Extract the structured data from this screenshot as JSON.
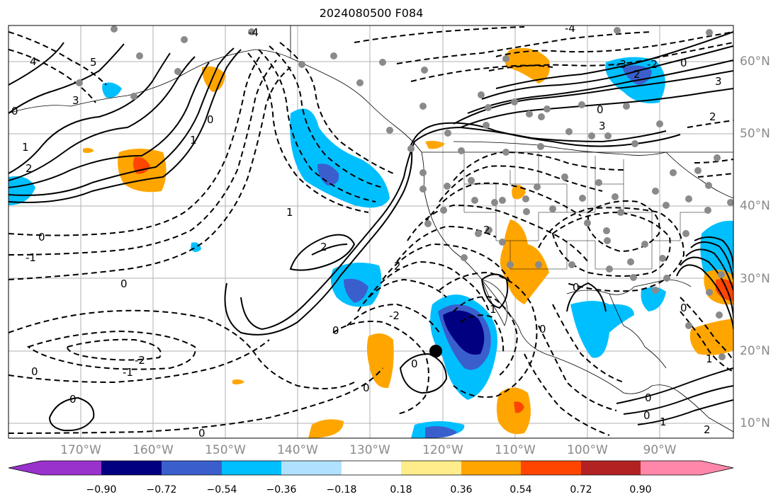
{
  "title": "2024080500 F084",
  "latitude_labels": [
    "60°N",
    "50°N",
    "40°N",
    "30°N",
    "20°N",
    "10°N"
  ],
  "longitude_labels": [
    "170°W",
    "160°W",
    "150°W",
    "140°W",
    "130°W",
    "120°W",
    "110°W",
    "100°W",
    "90°W"
  ],
  "colorbar": {
    "tick_labels": [
      "−0.90",
      "−0.72",
      "−0.54",
      "−0.36",
      "−0.18",
      "0.18",
      "0.36",
      "0.54",
      "0.72",
      "0.90"
    ],
    "colors": [
      "#9932cc",
      "#000080",
      "#3a5fcd",
      "#00bfff",
      "#b0e2ff",
      "#ffffff",
      "#ffec8b",
      "#ffa500",
      "#ff4500",
      "#b22222",
      "#ff88aa"
    ]
  },
  "contour_labels": [
    "4",
    "5",
    "3",
    "2",
    "1",
    "0",
    "-1",
    "-2",
    "-3",
    "-4"
  ],
  "marker": "center-point-marker"
}
